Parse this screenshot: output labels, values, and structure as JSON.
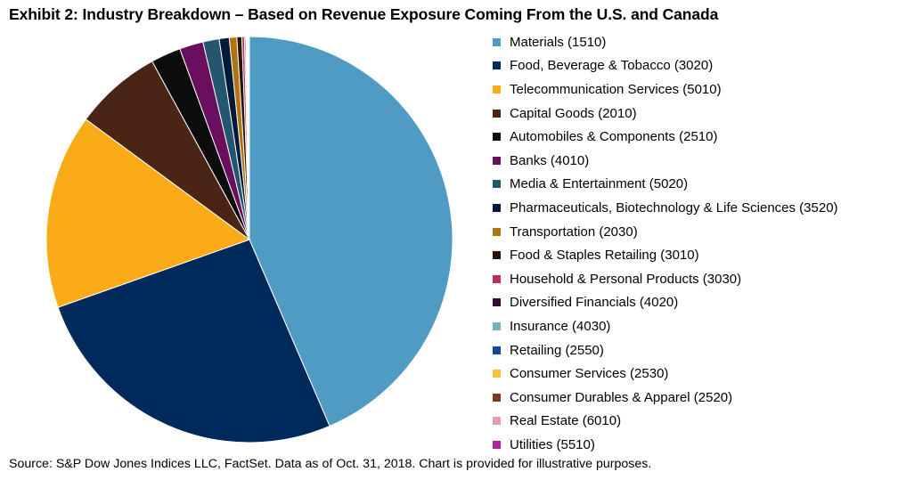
{
  "title": "Exhibit 2: Industry Breakdown – Based on Revenue Exposure Coming From the U.S. and Canada",
  "source": "Source: S&P Dow Jones Indices LLC, FactSet. Data as of Oct. 31, 2018. Chart is provided for illustrative purposes.",
  "chart_data": {
    "type": "pie",
    "title": "Exhibit 2: Industry Breakdown – Based on Revenue Exposure Coming From the U.S. and Canada",
    "legend_position": "right",
    "start": "12 o'clock",
    "direction": "clockwise",
    "slices": [
      {
        "label": "Materials (1510)",
        "value": 43.8,
        "color": "#4f9bc4"
      },
      {
        "label": "Food, Beverage & Tobacco (3020)",
        "value": 26.2,
        "color": "#002a5c"
      },
      {
        "label": "Telecommunication Services (5010)",
        "value": 15.6,
        "color": "#fbab18"
      },
      {
        "label": "Capital Goods (2010)",
        "value": 7.0,
        "color": "#4a2414"
      },
      {
        "label": "Automobiles & Components (2510)",
        "value": 2.4,
        "color": "#0d0d0d"
      },
      {
        "label": "Banks (4010)",
        "value": 1.9,
        "color": "#6a0f5e"
      },
      {
        "label": "Media & Entertainment (5020)",
        "value": 1.3,
        "color": "#255670"
      },
      {
        "label": "Pharmaceuticals, Biotechnology & Life Sciences (3520)",
        "value": 0.8,
        "color": "#001a38"
      },
      {
        "label": "Transportation (2030)",
        "value": 0.6,
        "color": "#b07410"
      },
      {
        "label": "Food & Staples Retailing (3010)",
        "value": 0.4,
        "color": "#2a1409"
      },
      {
        "label": "Household & Personal Products (3030)",
        "value": 0.2,
        "color": "#b83060"
      },
      {
        "label": "Diversified Financials (4020)",
        "value": 0.1,
        "color": "#3a0838"
      },
      {
        "label": "Insurance (4030)",
        "value": 0.05,
        "color": "#7aaec8"
      },
      {
        "label": "Retailing (2550)",
        "value": 0.05,
        "color": "#0b4a9c"
      },
      {
        "label": "Consumer Services (2530)",
        "value": 0.05,
        "color": "#fbbf3c"
      },
      {
        "label": "Consumer Durables & Apparel (2520)",
        "value": 0.05,
        "color": "#7a3a20"
      },
      {
        "label": "Real Estate (6010)",
        "value": 0.05,
        "color": "#e898b0"
      },
      {
        "label": "Utilities (5510)",
        "value": 0.05,
        "color": "#b020a0"
      }
    ]
  }
}
